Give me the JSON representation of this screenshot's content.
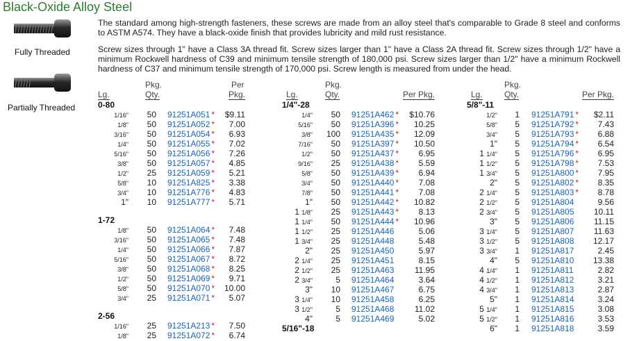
{
  "title": "Black-Oxide Alloy Steel",
  "images": [
    {
      "caption": "Fully Threaded"
    },
    {
      "caption": "Partially Threaded"
    }
  ],
  "description": {
    "p1": "The standard among high-strength fasteners, these screws are made from an alloy steel that's comparable to Grade 8 steel and conforms to ASTM A574. They have a black-oxide finish that provides lubricity and mild rust resistance.",
    "p2": "Screw sizes through 1\" have a Class 3A thread fit. Screw sizes larger than 1\" have a Class 2A thread fit. Screw sizes through 1/2\" have a minimum Rockwell hardness of C39 and minimum tensile strength of 180,000 psi. Screw sizes larger than 1/2\" have a minimum Rockwell hardness of C37 and minimum tensile strength of 170,000 psi. Screw length is measured from under the head."
  },
  "table_headers": {
    "lg": "Lg.",
    "pkg": "Pkg.",
    "qty": "Qty.",
    "per": "Per",
    "pkg2": "Pkg.",
    "per_pkg": "Per Pkg."
  },
  "columns": [
    {
      "groups": [
        {
          "name": "0-80",
          "rows": [
            {
              "w": "",
              "f": "1/16\"",
              "q": "50",
              "pn": "91251A051",
              "s": true,
              "p": "$9.11"
            },
            {
              "w": "",
              "f": "1/8\"",
              "q": "50",
              "pn": "91251A052",
              "s": true,
              "p": "7.00"
            },
            {
              "w": "",
              "f": "3/16\"",
              "q": "50",
              "pn": "91251A054",
              "s": true,
              "p": "6.93"
            },
            {
              "w": "",
              "f": "1/4\"",
              "q": "50",
              "pn": "91251A055",
              "s": true,
              "p": "7.02"
            },
            {
              "w": "",
              "f": "5/16\"",
              "q": "50",
              "pn": "91251A056",
              "s": true,
              "p": "7.26"
            },
            {
              "w": "",
              "f": "3/8\"",
              "q": "50",
              "pn": "91251A057",
              "s": true,
              "p": "4.85"
            },
            {
              "w": "",
              "f": "1/2\"",
              "q": "25",
              "pn": "91251A059",
              "s": true,
              "p": "5.21"
            },
            {
              "w": "",
              "f": "5/8\"",
              "q": "10",
              "pn": "91251A825",
              "s": true,
              "p": "3.38"
            },
            {
              "w": "",
              "f": "3/4\"",
              "q": "10",
              "pn": "91251A776",
              "s": true,
              "p": "4.83"
            },
            {
              "w": "1\"",
              "f": "",
              "q": "10",
              "pn": "91251A777",
              "s": true,
              "p": "5.71"
            }
          ]
        },
        {
          "name": "1-72",
          "rows": [
            {
              "w": "",
              "f": "1/8\"",
              "q": "50",
              "pn": "91251A064",
              "s": true,
              "p": "7.48"
            },
            {
              "w": "",
              "f": "3/16\"",
              "q": "50",
              "pn": "91251A065",
              "s": true,
              "p": "7.48"
            },
            {
              "w": "",
              "f": "1/4\"",
              "q": "50",
              "pn": "91251A066",
              "s": true,
              "p": "7.87"
            },
            {
              "w": "",
              "f": "5/16\"",
              "q": "50",
              "pn": "91251A067",
              "s": true,
              "p": "8.72"
            },
            {
              "w": "",
              "f": "3/8\"",
              "q": "50",
              "pn": "91251A068",
              "s": true,
              "p": "8.25"
            },
            {
              "w": "",
              "f": "1/2\"",
              "q": "50",
              "pn": "91251A069",
              "s": true,
              "p": "9.71"
            },
            {
              "w": "",
              "f": "5/8\"",
              "q": "50",
              "pn": "91251A070",
              "s": true,
              "p": "10.00"
            },
            {
              "w": "",
              "f": "3/4\"",
              "q": "25",
              "pn": "91251A071",
              "s": true,
              "p": "5.07"
            }
          ]
        },
        {
          "name": "2-56",
          "rows": [
            {
              "w": "",
              "f": "1/16\"",
              "q": "25",
              "pn": "91251A213",
              "s": true,
              "p": "7.50"
            },
            {
              "w": "",
              "f": "1/8\"",
              "q": "25",
              "pn": "91251A072",
              "s": true,
              "p": "6.74"
            }
          ]
        }
      ]
    },
    {
      "groups": [
        {
          "name": "1/4\"-28",
          "rows": [
            {
              "w": "",
              "f": "1/4\"",
              "q": "50",
              "pn": "91251A462",
              "s": true,
              "p": "$10.76"
            },
            {
              "w": "",
              "f": "5/16\"",
              "q": "50",
              "pn": "91251A396",
              "s": true,
              "p": "10.25"
            },
            {
              "w": "",
              "f": "3/8\"",
              "q": "100",
              "pn": "91251A435",
              "s": true,
              "p": "12.09"
            },
            {
              "w": "",
              "f": "7/16\"",
              "q": "50",
              "pn": "91251A397",
              "s": true,
              "p": "10.50"
            },
            {
              "w": "",
              "f": "1/2\"",
              "q": "50",
              "pn": "91251A437",
              "s": true,
              "p": "6.95"
            },
            {
              "w": "",
              "f": "9/16\"",
              "q": "25",
              "pn": "91251A438",
              "s": true,
              "p": "5.59"
            },
            {
              "w": "",
              "f": "5/8\"",
              "q": "50",
              "pn": "91251A439",
              "s": true,
              "p": "6.94"
            },
            {
              "w": "",
              "f": "3/4\"",
              "q": "50",
              "pn": "91251A440",
              "s": true,
              "p": "7.08"
            },
            {
              "w": "",
              "f": "7/8\"",
              "q": "50",
              "pn": "91251A441",
              "s": true,
              "p": "7.08"
            },
            {
              "w": "1\"",
              "f": "",
              "q": "50",
              "pn": "91251A442",
              "s": true,
              "p": "10.82"
            },
            {
              "w": "1",
              "f": "1/8\"",
              "q": "25",
              "pn": "91251A443",
              "s": true,
              "p": "8.13"
            },
            {
              "w": "1",
              "f": "1/4\"",
              "q": "50",
              "pn": "91251A444",
              "s": true,
              "p": "10.96"
            },
            {
              "w": "1",
              "f": "1/2\"",
              "q": "25",
              "pn": "91251A446",
              "s": false,
              "p": "5.06"
            },
            {
              "w": "1",
              "f": "3/4\"",
              "q": "25",
              "pn": "91251A448",
              "s": false,
              "p": "5.48"
            },
            {
              "w": "2\"",
              "f": "",
              "q": "25",
              "pn": "91251A450",
              "s": false,
              "p": "5.97"
            },
            {
              "w": "2",
              "f": "1/4\"",
              "q": "25",
              "pn": "91251A451",
              "s": false,
              "p": "8.15"
            },
            {
              "w": "2",
              "f": "1/2\"",
              "q": "25",
              "pn": "91251A463",
              "s": false,
              "p": "11.95"
            },
            {
              "w": "2",
              "f": "3/4\"",
              "q": "5",
              "pn": "91251A464",
              "s": false,
              "p": "3.64"
            },
            {
              "w": "3\"",
              "f": "",
              "q": "10",
              "pn": "91251A467",
              "s": false,
              "p": "6.75"
            },
            {
              "w": "3",
              "f": "1/4\"",
              "q": "10",
              "pn": "91251A458",
              "s": false,
              "p": "6.25"
            },
            {
              "w": "3",
              "f": "1/2\"",
              "q": "5",
              "pn": "91251A468",
              "s": false,
              "p": "11.02"
            },
            {
              "w": "4\"",
              "f": "",
              "q": "5",
              "pn": "91251A469",
              "s": false,
              "p": "5.02"
            }
          ]
        },
        {
          "name": "5/16\"-18",
          "rows": []
        }
      ]
    },
    {
      "groups": [
        {
          "name": "5/8\"-11",
          "rows": [
            {
              "w": "",
              "f": "1/2\"",
              "q": "1",
              "pn": "91251A791",
              "s": true,
              "p": "$2.11"
            },
            {
              "w": "",
              "f": "5/8\"",
              "q": "5",
              "pn": "91251A792",
              "s": true,
              "p": "7.43"
            },
            {
              "w": "",
              "f": "3/4\"",
              "q": "5",
              "pn": "91251A793",
              "s": true,
              "p": "6.88"
            },
            {
              "w": "1\"",
              "f": "",
              "q": "5",
              "pn": "91251A794",
              "s": true,
              "p": "6.54"
            },
            {
              "w": "1",
              "f": "1/4\"",
              "q": "5",
              "pn": "91251A796",
              "s": true,
              "p": "6.95"
            },
            {
              "w": "1",
              "f": "1/2\"",
              "q": "5",
              "pn": "91251A798",
              "s": true,
              "p": "7.53"
            },
            {
              "w": "1",
              "f": "3/4\"",
              "q": "5",
              "pn": "91251A800",
              "s": true,
              "p": "7.95"
            },
            {
              "w": "2\"",
              "f": "",
              "q": "5",
              "pn": "91251A802",
              "s": true,
              "p": "8.35"
            },
            {
              "w": "2",
              "f": "1/4\"",
              "q": "5",
              "pn": "91251A803",
              "s": true,
              "p": "8.78"
            },
            {
              "w": "2",
              "f": "1/2\"",
              "q": "5",
              "pn": "91251A804",
              "s": false,
              "p": "9.56"
            },
            {
              "w": "2",
              "f": "3/4\"",
              "q": "5",
              "pn": "91251A805",
              "s": false,
              "p": "10.11"
            },
            {
              "w": "3\"",
              "f": "",
              "q": "5",
              "pn": "91251A806",
              "s": false,
              "p": "11.15"
            },
            {
              "w": "3",
              "f": "1/4\"",
              "q": "5",
              "pn": "91251A807",
              "s": false,
              "p": "11.63"
            },
            {
              "w": "3",
              "f": "1/2\"",
              "q": "5",
              "pn": "91251A808",
              "s": false,
              "p": "12.17"
            },
            {
              "w": "3",
              "f": "3/4\"",
              "q": "1",
              "pn": "91251A817",
              "s": false,
              "p": "2.45"
            },
            {
              "w": "4\"",
              "f": "",
              "q": "5",
              "pn": "91251A810",
              "s": false,
              "p": "13.38"
            },
            {
              "w": "4",
              "f": "1/4\"",
              "q": "1",
              "pn": "91251A811",
              "s": false,
              "p": "2.82"
            },
            {
              "w": "4",
              "f": "1/2\"",
              "q": "1",
              "pn": "91251A812",
              "s": false,
              "p": "3.21"
            },
            {
              "w": "4",
              "f": "3/4\"",
              "q": "1",
              "pn": "91251A813",
              "s": false,
              "p": "2.87"
            },
            {
              "w": "5\"",
              "f": "",
              "q": "1",
              "pn": "91251A814",
              "s": false,
              "p": "3.24"
            },
            {
              "w": "5",
              "f": "1/4\"",
              "q": "1",
              "pn": "91251A815",
              "s": false,
              "p": "3.08"
            },
            {
              "w": "5",
              "f": "1/2\"",
              "q": "1",
              "pn": "91251A816",
              "s": false,
              "p": "3.53"
            },
            {
              "w": "6\"",
              "f": "",
              "q": "1",
              "pn": "91251A818",
              "s": false,
              "p": "3.59"
            }
          ]
        }
      ]
    }
  ]
}
